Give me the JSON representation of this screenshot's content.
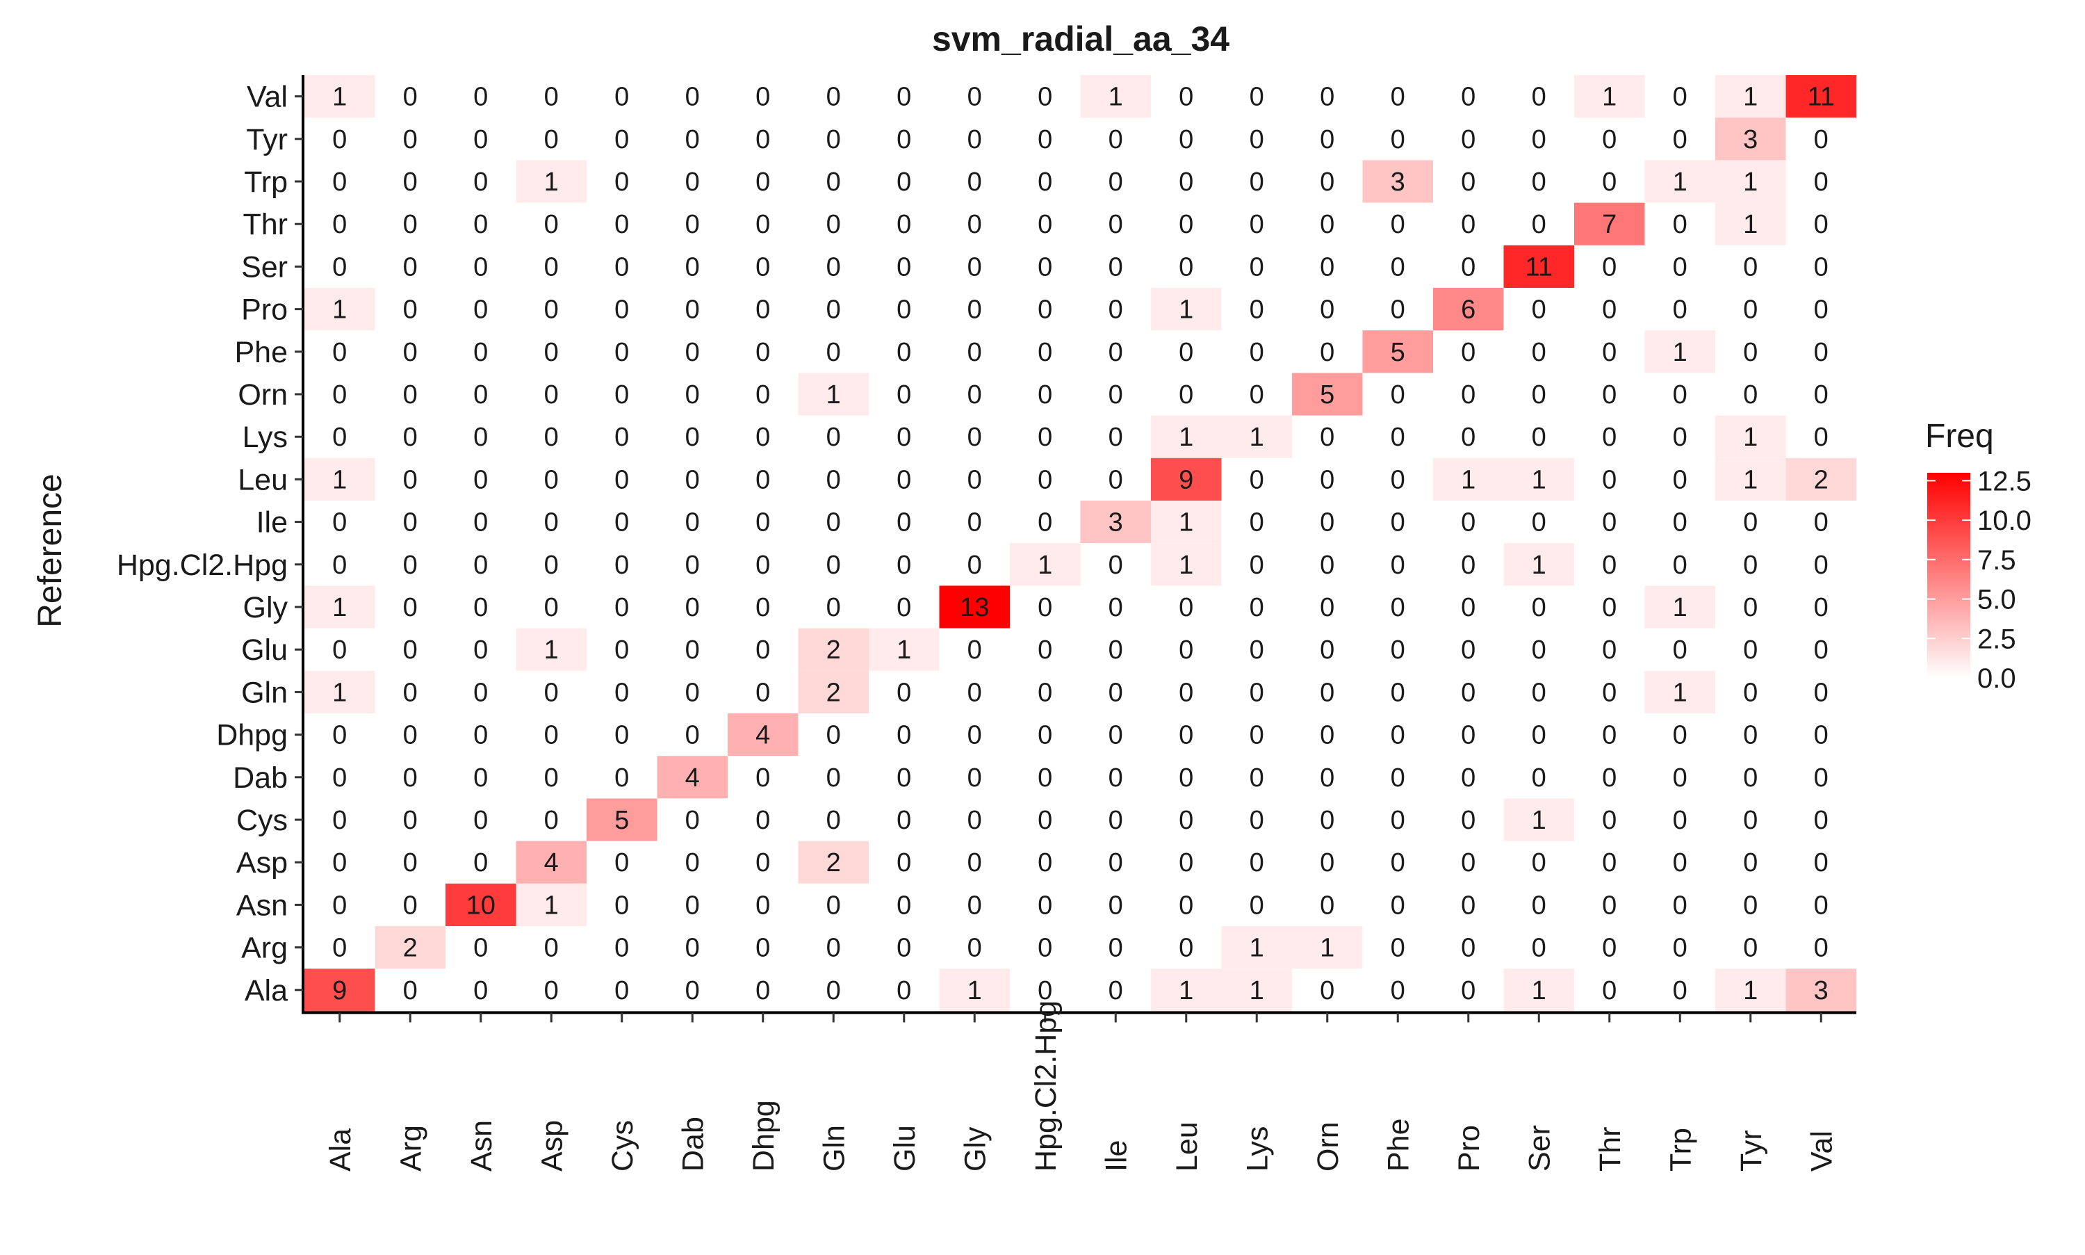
{
  "chart_data": {
    "type": "heatmap",
    "title": "svm_radial_aa_34",
    "xlabel": "",
    "ylabel": "Reference",
    "x_categories": [
      "Ala",
      "Arg",
      "Asn",
      "Asp",
      "Cys",
      "Dab",
      "Dhpg",
      "Gln",
      "Glu",
      "Gly",
      "Hpg.Cl2.Hpg",
      "Ile",
      "Leu",
      "Lys",
      "Orn",
      "Phe",
      "Pro",
      "Ser",
      "Thr",
      "Trp",
      "Tyr",
      "Val"
    ],
    "y_categories": [
      "Val",
      "Tyr",
      "Trp",
      "Thr",
      "Ser",
      "Pro",
      "Phe",
      "Orn",
      "Lys",
      "Leu",
      "Ile",
      "Hpg.Cl2.Hpg",
      "Gly",
      "Glu",
      "Gln",
      "Dhpg",
      "Dab",
      "Cys",
      "Asp",
      "Asn",
      "Arg",
      "Ala"
    ],
    "values": [
      [
        1,
        0,
        0,
        0,
        0,
        0,
        0,
        0,
        0,
        0,
        0,
        1,
        0,
        0,
        0,
        0,
        0,
        0,
        1,
        0,
        1,
        11
      ],
      [
        0,
        0,
        0,
        0,
        0,
        0,
        0,
        0,
        0,
        0,
        0,
        0,
        0,
        0,
        0,
        0,
        0,
        0,
        0,
        0,
        3,
        0
      ],
      [
        0,
        0,
        0,
        1,
        0,
        0,
        0,
        0,
        0,
        0,
        0,
        0,
        0,
        0,
        0,
        3,
        0,
        0,
        0,
        1,
        1,
        0
      ],
      [
        0,
        0,
        0,
        0,
        0,
        0,
        0,
        0,
        0,
        0,
        0,
        0,
        0,
        0,
        0,
        0,
        0,
        0,
        7,
        0,
        1,
        0
      ],
      [
        0,
        0,
        0,
        0,
        0,
        0,
        0,
        0,
        0,
        0,
        0,
        0,
        0,
        0,
        0,
        0,
        0,
        11,
        0,
        0,
        0,
        0
      ],
      [
        1,
        0,
        0,
        0,
        0,
        0,
        0,
        0,
        0,
        0,
        0,
        0,
        1,
        0,
        0,
        0,
        6,
        0,
        0,
        0,
        0,
        0
      ],
      [
        0,
        0,
        0,
        0,
        0,
        0,
        0,
        0,
        0,
        0,
        0,
        0,
        0,
        0,
        0,
        5,
        0,
        0,
        0,
        1,
        0,
        0
      ],
      [
        0,
        0,
        0,
        0,
        0,
        0,
        0,
        1,
        0,
        0,
        0,
        0,
        0,
        0,
        5,
        0,
        0,
        0,
        0,
        0,
        0,
        0
      ],
      [
        0,
        0,
        0,
        0,
        0,
        0,
        0,
        0,
        0,
        0,
        0,
        0,
        1,
        1,
        0,
        0,
        0,
        0,
        0,
        0,
        1,
        0
      ],
      [
        1,
        0,
        0,
        0,
        0,
        0,
        0,
        0,
        0,
        0,
        0,
        0,
        9,
        0,
        0,
        0,
        1,
        1,
        0,
        0,
        1,
        2
      ],
      [
        0,
        0,
        0,
        0,
        0,
        0,
        0,
        0,
        0,
        0,
        0,
        3,
        1,
        0,
        0,
        0,
        0,
        0,
        0,
        0,
        0,
        0
      ],
      [
        0,
        0,
        0,
        0,
        0,
        0,
        0,
        0,
        0,
        0,
        1,
        0,
        1,
        0,
        0,
        0,
        0,
        1,
        0,
        0,
        0,
        0
      ],
      [
        1,
        0,
        0,
        0,
        0,
        0,
        0,
        0,
        0,
        13,
        0,
        0,
        0,
        0,
        0,
        0,
        0,
        0,
        0,
        1,
        0,
        0
      ],
      [
        0,
        0,
        0,
        1,
        0,
        0,
        0,
        2,
        1,
        0,
        0,
        0,
        0,
        0,
        0,
        0,
        0,
        0,
        0,
        0,
        0,
        0
      ],
      [
        1,
        0,
        0,
        0,
        0,
        0,
        0,
        2,
        0,
        0,
        0,
        0,
        0,
        0,
        0,
        0,
        0,
        0,
        0,
        1,
        0,
        0
      ],
      [
        0,
        0,
        0,
        0,
        0,
        0,
        4,
        0,
        0,
        0,
        0,
        0,
        0,
        0,
        0,
        0,
        0,
        0,
        0,
        0,
        0,
        0
      ],
      [
        0,
        0,
        0,
        0,
        0,
        4,
        0,
        0,
        0,
        0,
        0,
        0,
        0,
        0,
        0,
        0,
        0,
        0,
        0,
        0,
        0,
        0
      ],
      [
        0,
        0,
        0,
        0,
        5,
        0,
        0,
        0,
        0,
        0,
        0,
        0,
        0,
        0,
        0,
        0,
        0,
        1,
        0,
        0,
        0,
        0
      ],
      [
        0,
        0,
        0,
        4,
        0,
        0,
        0,
        2,
        0,
        0,
        0,
        0,
        0,
        0,
        0,
        0,
        0,
        0,
        0,
        0,
        0,
        0
      ],
      [
        0,
        0,
        10,
        1,
        0,
        0,
        0,
        0,
        0,
        0,
        0,
        0,
        0,
        0,
        0,
        0,
        0,
        0,
        0,
        0,
        0,
        0
      ],
      [
        0,
        2,
        0,
        0,
        0,
        0,
        0,
        0,
        0,
        0,
        0,
        0,
        0,
        1,
        1,
        0,
        0,
        0,
        0,
        0,
        0,
        0
      ],
      [
        9,
        0,
        0,
        0,
        0,
        0,
        0,
        0,
        0,
        1,
        0,
        0,
        1,
        1,
        0,
        0,
        0,
        1,
        0,
        0,
        1,
        3
      ]
    ],
    "legend": {
      "title": "Freq",
      "ticks": [
        "12.5",
        "10.0",
        "7.5",
        "5.0",
        "2.5",
        "0.0"
      ],
      "tick_values": [
        12.5,
        10.0,
        7.5,
        5.0,
        2.5,
        0.0
      ],
      "range": [
        0,
        13
      ],
      "low_color": "#ffffff",
      "high_color": "#ff0000",
      "placement": "right"
    },
    "grid": false
  }
}
